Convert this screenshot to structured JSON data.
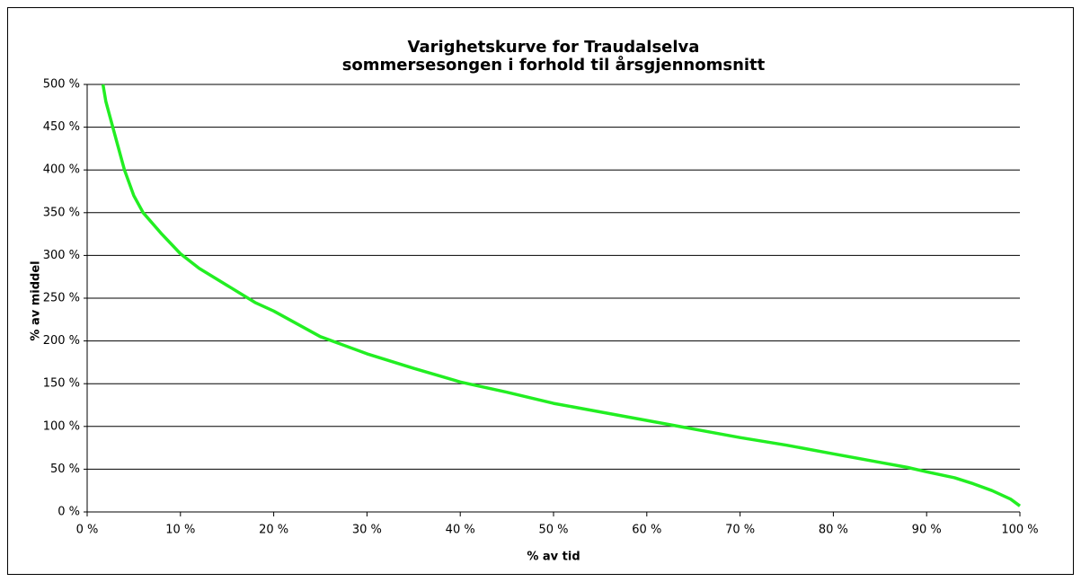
{
  "chart_data": {
    "type": "line",
    "title": "Varighetskurve for Traudalselva",
    "subtitle": "sommersesongen i forhold til årsgjennomsnitt",
    "x_label": "% av tid",
    "y_label": "% av middel",
    "x": [
      1.7,
      2,
      3,
      4,
      5,
      6,
      8,
      10,
      12,
      15,
      18,
      20,
      25,
      30,
      35,
      40,
      45,
      50,
      55,
      60,
      65,
      70,
      75,
      80,
      85,
      88,
      90,
      93,
      95,
      97,
      99,
      100
    ],
    "series": [
      {
        "color": "#22ee22",
        "values": [
          500,
          480,
          440,
          400,
          370,
          350,
          325,
          302,
          285,
          265,
          245,
          235,
          205,
          185,
          168,
          152,
          140,
          127,
          117,
          107,
          97,
          87,
          78,
          68,
          58,
          52,
          47,
          40,
          33,
          25,
          15,
          7
        ]
      }
    ],
    "xlim": [
      0,
      100
    ],
    "xticks": [
      {
        "value": 0,
        "label": "0 %"
      },
      {
        "value": 10,
        "label": "10 %"
      },
      {
        "value": 20,
        "label": "20 %"
      },
      {
        "value": 30,
        "label": "30 %"
      },
      {
        "value": 40,
        "label": "40 %"
      },
      {
        "value": 50,
        "label": "50 %"
      },
      {
        "value": 60,
        "label": "60 %"
      },
      {
        "value": 70,
        "label": "70 %"
      },
      {
        "value": 80,
        "label": "80 %"
      },
      {
        "value": 90,
        "label": "90 %"
      },
      {
        "value": 100,
        "label": "100 %"
      }
    ],
    "ylim": [
      0,
      500
    ],
    "yticks": [
      {
        "value": 0,
        "label": "0 %"
      },
      {
        "value": 50,
        "label": "50 %"
      },
      {
        "value": 100,
        "label": "100 %"
      },
      {
        "value": 150,
        "label": "150 %"
      },
      {
        "value": 200,
        "label": "200 %"
      },
      {
        "value": 250,
        "label": "250 %"
      },
      {
        "value": 300,
        "label": "300 %"
      },
      {
        "value": 350,
        "label": "350 %"
      },
      {
        "value": 400,
        "label": "400 %"
      },
      {
        "value": 450,
        "label": "450 %"
      },
      {
        "value": 500,
        "label": "500 %"
      }
    ],
    "grid": true
  }
}
